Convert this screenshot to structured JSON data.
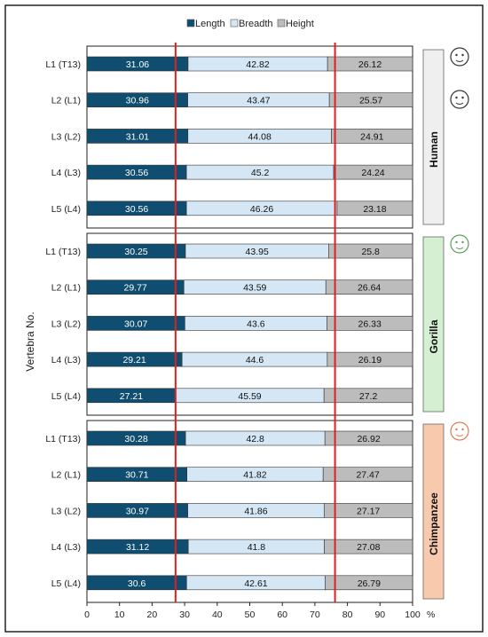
{
  "chart_data": {
    "type": "bar",
    "stacked": true,
    "orientation": "horizontal",
    "ylabel": "Vertebra No.",
    "x_unit_label": "%",
    "xlim": [
      0,
      100
    ],
    "xticks": [
      0,
      10,
      20,
      30,
      40,
      50,
      60,
      70,
      80,
      90,
      100
    ],
    "reference_lines_x": [
      27.21,
      76.18
    ],
    "legend": {
      "placement": "top-center",
      "entries": [
        "Length",
        "Breadth",
        "Height"
      ]
    },
    "series_colors": {
      "Length": "#0f4e70",
      "Breadth": "#d5e7f5",
      "Height": "#bcbcbc"
    },
    "reference_line_color": "#e02020",
    "groups": [
      {
        "name": "Human",
        "color": "#efefef",
        "icon": "human-face-icon",
        "categories": [
          "L1 (T13)",
          "L2 (L1)",
          "L3 (L2)",
          "L4 (L3)",
          "L5 (L4)"
        ],
        "series": [
          {
            "name": "Length",
            "values": [
              31.06,
              30.96,
              31.01,
              30.56,
              30.56
            ]
          },
          {
            "name": "Breadth",
            "values": [
              42.82,
              43.47,
              44.08,
              45.2,
              46.26
            ]
          },
          {
            "name": "Height",
            "values": [
              26.12,
              25.57,
              24.91,
              24.24,
              23.18
            ]
          }
        ]
      },
      {
        "name": "Gorilla",
        "color": "#d5efd3",
        "icon": "gorilla-face-icon",
        "categories": [
          "L1 (T13)",
          "L2 (L1)",
          "L3 (L2)",
          "L4 (L3)",
          "L5 (L4)"
        ],
        "series": [
          {
            "name": "Length",
            "values": [
              30.25,
              29.77,
              30.07,
              29.21,
              27.21
            ]
          },
          {
            "name": "Breadth",
            "values": [
              43.95,
              43.59,
              43.6,
              44.6,
              45.59
            ]
          },
          {
            "name": "Height",
            "values": [
              25.8,
              26.64,
              26.33,
              26.19,
              27.2
            ]
          }
        ]
      },
      {
        "name": "Chimpanzee",
        "color": "#f8c9ad",
        "icon": "chimpanzee-face-icon",
        "categories": [
          "L1 (T13)",
          "L2 (L1)",
          "L3 (L2)",
          "L4 (L3)",
          "L5 (L4)"
        ],
        "series": [
          {
            "name": "Length",
            "values": [
              30.28,
              30.71,
              30.97,
              31.12,
              30.6
            ]
          },
          {
            "name": "Breadth",
            "values": [
              42.8,
              41.82,
              41.86,
              41.8,
              42.61
            ]
          },
          {
            "name": "Height",
            "values": [
              26.92,
              27.47,
              27.17,
              27.08,
              26.79
            ]
          }
        ]
      }
    ]
  }
}
